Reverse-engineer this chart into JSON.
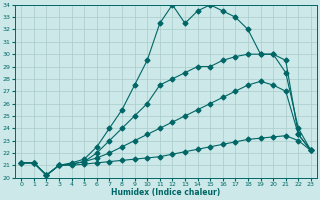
{
  "xlabel": "Humidex (Indice chaleur)",
  "bg_color": "#cce8e8",
  "line_color": "#006666",
  "grid_color": "#aacccc",
  "xlim": [
    -0.5,
    23.5
  ],
  "ylim": [
    20,
    34
  ],
  "xticks": [
    0,
    1,
    2,
    3,
    4,
    5,
    6,
    7,
    8,
    9,
    10,
    11,
    12,
    13,
    14,
    15,
    16,
    17,
    18,
    19,
    20,
    21,
    22,
    23
  ],
  "yticks": [
    20,
    21,
    22,
    23,
    24,
    25,
    26,
    27,
    28,
    29,
    30,
    31,
    32,
    33,
    34
  ],
  "line1_x": [
    0,
    1,
    2,
    3,
    4,
    5,
    6,
    7,
    8,
    9,
    10,
    11,
    12,
    13,
    14,
    15,
    16,
    17,
    18,
    19,
    20,
    21,
    22,
    23
  ],
  "line1_y": [
    21.2,
    21.2,
    20.2,
    21.0,
    21.0,
    21.1,
    21.2,
    21.3,
    21.4,
    21.5,
    21.6,
    21.7,
    21.9,
    22.1,
    22.3,
    22.5,
    22.7,
    22.9,
    23.1,
    23.2,
    23.3,
    23.4,
    23.0,
    22.2
  ],
  "line2_x": [
    0,
    1,
    2,
    3,
    4,
    5,
    6,
    7,
    8,
    9,
    10,
    11,
    12,
    13,
    14,
    15,
    16,
    17,
    18,
    19,
    20,
    21,
    22,
    23
  ],
  "line2_y": [
    21.2,
    21.2,
    20.2,
    21.0,
    21.1,
    21.3,
    21.6,
    22.0,
    22.5,
    23.0,
    23.5,
    24.0,
    24.5,
    25.0,
    25.5,
    26.0,
    26.5,
    27.0,
    27.5,
    27.8,
    27.5,
    27.0,
    23.5,
    22.2
  ],
  "line3_x": [
    0,
    1,
    2,
    3,
    4,
    5,
    6,
    7,
    8,
    9,
    10,
    11,
    12,
    13,
    14,
    15,
    16,
    17,
    18,
    19,
    20,
    21,
    22,
    23
  ],
  "line3_y": [
    21.2,
    21.2,
    20.2,
    21.0,
    21.1,
    21.3,
    22.0,
    23.0,
    24.0,
    25.0,
    26.0,
    27.5,
    28.0,
    28.5,
    29.0,
    29.0,
    29.5,
    29.8,
    30.0,
    30.0,
    30.0,
    29.5,
    23.5,
    22.2
  ],
  "line4_x": [
    0,
    1,
    2,
    3,
    4,
    5,
    6,
    7,
    8,
    9,
    10,
    11,
    12,
    13,
    14,
    15,
    16,
    17,
    18,
    19,
    20,
    21,
    22,
    23
  ],
  "line4_y": [
    21.2,
    21.2,
    20.2,
    21.0,
    21.2,
    21.5,
    22.5,
    24.0,
    25.5,
    27.5,
    29.5,
    32.5,
    34.0,
    32.5,
    33.5,
    34.0,
    33.5,
    33.0,
    32.0,
    30.0,
    30.0,
    28.5,
    24.0,
    22.2
  ]
}
